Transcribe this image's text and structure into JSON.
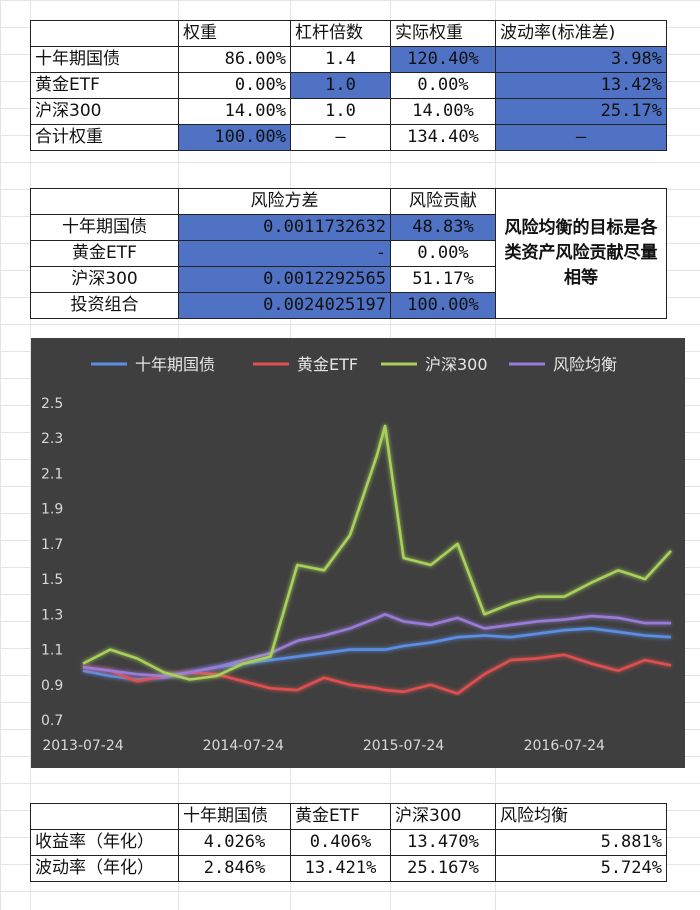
{
  "table1": {
    "headers": [
      "",
      "权重",
      "杠杆倍数",
      "实际权重",
      "波动率(标准差)"
    ],
    "rows": [
      [
        "十年期国债",
        "86.00%",
        "1.4",
        "120.40%",
        "3.98%"
      ],
      [
        "黄金ETF",
        "0.00%",
        "1.0",
        "0.00%",
        "13.42%"
      ],
      [
        "沪深300",
        "14.00%",
        "1.0",
        "14.00%",
        "25.17%"
      ],
      [
        "合计权重",
        "100.00%",
        "—",
        "134.40%",
        "—"
      ]
    ]
  },
  "table2": {
    "headers": [
      "",
      "风险方差",
      "风险贡献"
    ],
    "rows": [
      [
        "十年期国债",
        "0.0011732632",
        "48.83%"
      ],
      [
        "黄金ETF",
        "-",
        "0.00%"
      ],
      [
        "沪深300",
        "0.0012292565",
        "51.17%"
      ],
      [
        "投资组合",
        "0.0024025197",
        "100.00%"
      ]
    ],
    "note": "风险均衡的目标是各类资产风险贡献尽量相等"
  },
  "table3": {
    "headers": [
      "",
      "十年期国债",
      "黄金ETF",
      "沪深300",
      "风险均衡"
    ],
    "rows": [
      [
        "收益率（年化）",
        "4.026%",
        "0.406%",
        "13.470%",
        "5.881%"
      ],
      [
        "波动率（年化）",
        "2.846%",
        "13.421%",
        "25.167%",
        "5.724%"
      ]
    ]
  },
  "colors": {
    "cell_blue": "#4f72c4",
    "chart_bg": "#3f3f3f",
    "series_bond": "#5b8ee6",
    "series_gold": "#e05050",
    "series_csi": "#a8d05a",
    "series_rp": "#9a7cd8"
  },
  "chart_data": {
    "type": "line",
    "title": "",
    "xlabel": "",
    "ylabel": "",
    "ylim": [
      0.7,
      2.5
    ],
    "yticks": [
      "0.7",
      "0.9",
      "1.1",
      "1.3",
      "1.5",
      "1.7",
      "1.9",
      "2.1",
      "2.3",
      "2.5"
    ],
    "xticks": [
      "2013-07-24",
      "2014-07-24",
      "2015-07-24",
      "2016-07-24"
    ],
    "xlim": [
      "2013-07-24",
      "2017-03-24"
    ],
    "x": [
      "2013-07-24",
      "2013-09-24",
      "2013-11-24",
      "2014-01-24",
      "2014-03-24",
      "2014-05-24",
      "2014-07-24",
      "2014-09-24",
      "2014-11-24",
      "2015-01-24",
      "2015-03-24",
      "2015-05-24",
      "2015-06-12",
      "2015-07-24",
      "2015-09-24",
      "2015-11-24",
      "2016-01-24",
      "2016-03-24",
      "2016-05-24",
      "2016-07-24",
      "2016-09-24",
      "2016-11-24",
      "2017-01-24",
      "2017-03-24"
    ],
    "legend_position": "top",
    "grid": false,
    "series": [
      {
        "name": "十年期国债",
        "values": [
          0.98,
          0.95,
          0.93,
          0.94,
          0.97,
          1.0,
          1.02,
          1.04,
          1.06,
          1.08,
          1.1,
          1.1,
          1.1,
          1.12,
          1.14,
          1.17,
          1.18,
          1.17,
          1.19,
          1.21,
          1.22,
          1.2,
          1.18,
          1.17
        ]
      },
      {
        "name": "黄金ETF",
        "values": [
          1.0,
          0.98,
          0.92,
          0.95,
          0.97,
          0.96,
          0.92,
          0.88,
          0.87,
          0.94,
          0.9,
          0.88,
          0.87,
          0.86,
          0.9,
          0.85,
          0.96,
          1.04,
          1.05,
          1.07,
          1.02,
          0.98,
          1.04,
          1.01
        ]
      },
      {
        "name": "沪深300",
        "values": [
          1.02,
          1.1,
          1.05,
          0.97,
          0.93,
          0.95,
          1.02,
          1.06,
          1.58,
          1.55,
          1.75,
          2.2,
          2.37,
          1.62,
          1.58,
          1.7,
          1.3,
          1.36,
          1.4,
          1.4,
          1.48,
          1.55,
          1.5,
          1.66
        ]
      },
      {
        "name": "风险均衡",
        "values": [
          1.0,
          0.98,
          0.96,
          0.95,
          0.97,
          1.0,
          1.04,
          1.08,
          1.15,
          1.18,
          1.22,
          1.28,
          1.3,
          1.26,
          1.24,
          1.28,
          1.22,
          1.24,
          1.26,
          1.27,
          1.29,
          1.28,
          1.25,
          1.25
        ]
      }
    ]
  }
}
